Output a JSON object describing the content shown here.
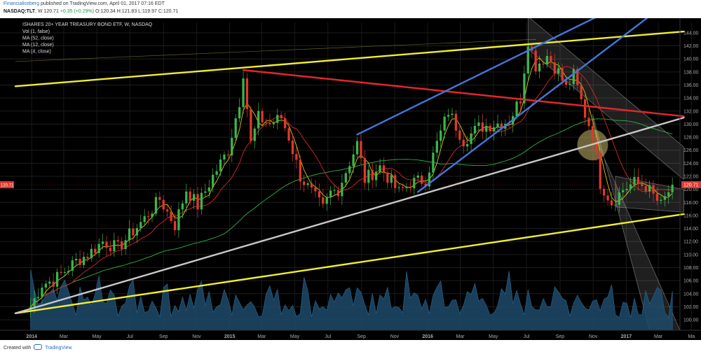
{
  "header": {
    "user": "Financialiceberg",
    "published": "published on TradingView.com, April 01, 2017 07:16 EDT",
    "symbol": "NASDAQ:TLT",
    "interval": ", W",
    "last": "120.71",
    "change": "+0.35 (+0.29%)",
    "o": "O:120.34",
    "h": "H:121.83",
    "l": "L:119.97",
    "c": "C:120.71"
  },
  "footer": {
    "created_with": "Created with",
    "brand": "TradingView"
  },
  "chart_data": {
    "type": "candlestick",
    "title": "ISHARES 20+ YEAR TREASURY BOND ETF, W, NASDAQ",
    "legend": [
      "Vol (1, false)",
      "MA (52, close)",
      "MA (12, close)",
      "MA (4, close)"
    ],
    "x_tick_labels": [
      "2014",
      "Mar",
      "May",
      "Jul",
      "Sep",
      "Nov",
      "2015",
      "Mar",
      "May",
      "Jul",
      "Sep",
      "Nov",
      "2016",
      "Mar",
      "May",
      "Jul",
      "Sep",
      "Nov",
      "2017",
      "Mar",
      "Ma"
    ],
    "y_tick_labels": [
      "100.00",
      "102.00",
      "104.00",
      "106.00",
      "108.00",
      "110.00",
      "112.00",
      "114.00",
      "116.00",
      "118.00",
      "120.00",
      "122.00",
      "124.00",
      "126.00",
      "128.00",
      "130.00",
      "132.00",
      "134.00",
      "136.00",
      "138.00",
      "140.00",
      "142.00",
      "144.00"
    ],
    "ylim": [
      98.4,
      145.6
    ],
    "x_start": "2013-12-02",
    "weeks_span": 175,
    "last_price_label": "120.71",
    "keypoints": [
      [
        "2013-12-30",
        102.0
      ],
      [
        "2014-01-20",
        105.5
      ],
      [
        "2014-02-10",
        106.0
      ],
      [
        "2014-03-03",
        107.5
      ],
      [
        "2014-03-24",
        109.0
      ],
      [
        "2014-04-14",
        110.0
      ],
      [
        "2014-05-12",
        112.0
      ],
      [
        "2014-06-09",
        111.0
      ],
      [
        "2014-06-30",
        113.0
      ],
      [
        "2014-07-28",
        115.5
      ],
      [
        "2014-08-25",
        118.5
      ],
      [
        "2014-09-22",
        114.5
      ],
      [
        "2014-10-13",
        120.0
      ],
      [
        "2014-11-03",
        117.5
      ],
      [
        "2014-12-01",
        122.0
      ],
      [
        "2014-12-29",
        126.0
      ],
      [
        "2015-01-19",
        133.5
      ],
      [
        "2015-01-26",
        138.0
      ],
      [
        "2015-02-09",
        127.0
      ],
      [
        "2015-02-23",
        131.0
      ],
      [
        "2015-03-16",
        130.0
      ],
      [
        "2015-04-06",
        131.0
      ],
      [
        "2015-04-20",
        128.0
      ],
      [
        "2015-05-11",
        122.0
      ],
      [
        "2015-06-01",
        119.5
      ],
      [
        "2015-06-22",
        117.0
      ],
      [
        "2015-07-06",
        119.5
      ],
      [
        "2015-07-20",
        120.0
      ],
      [
        "2015-08-24",
        127.0
      ],
      [
        "2015-09-07",
        121.5
      ],
      [
        "2015-10-05",
        123.5
      ],
      [
        "2015-11-09",
        119.5
      ],
      [
        "2015-11-30",
        121.0
      ],
      [
        "2015-12-28",
        121.5
      ],
      [
        "2016-01-18",
        127.0
      ],
      [
        "2016-02-08",
        132.0
      ],
      [
        "2016-03-07",
        127.5
      ],
      [
        "2016-04-04",
        129.5
      ],
      [
        "2016-05-02",
        130.0
      ],
      [
        "2016-05-30",
        130.5
      ],
      [
        "2016-06-20",
        134.0
      ],
      [
        "2016-07-04",
        143.0
      ],
      [
        "2016-07-18",
        139.0
      ],
      [
        "2016-08-08",
        140.5
      ],
      [
        "2016-08-29",
        138.0
      ],
      [
        "2016-09-12",
        135.5
      ],
      [
        "2016-09-26",
        137.5
      ],
      [
        "2016-10-17",
        131.5
      ],
      [
        "2016-10-31",
        128.5
      ],
      [
        "2016-11-14",
        121.0
      ],
      [
        "2016-12-05",
        118.0
      ],
      [
        "2016-12-26",
        120.0
      ],
      [
        "2017-01-16",
        121.0
      ],
      [
        "2017-02-06",
        120.5
      ],
      [
        "2017-03-06",
        117.5
      ],
      [
        "2017-03-27",
        120.71
      ]
    ],
    "trendlines": [
      {
        "color": "yellow",
        "points": [
          [
            "2013-12-02",
            135.8
          ],
          [
            "2017-04-17",
            144.2
          ]
        ]
      },
      {
        "color": "yellow",
        "points": [
          [
            "2013-12-02",
            101.0
          ],
          [
            "2017-04-17",
            116.2
          ]
        ]
      },
      {
        "color": "red",
        "points": [
          [
            "2015-01-26",
            138.3
          ],
          [
            "2017-04-17",
            131.2
          ]
        ]
      },
      {
        "color": "white",
        "points": [
          [
            "2013-12-02",
            101.0
          ],
          [
            "2017-04-17",
            131.0
          ]
        ]
      },
      {
        "color": "blue",
        "points": [
          [
            "2015-08-24",
            128.4
          ],
          [
            "2016-11-21",
            147.0
          ]
        ]
      },
      {
        "color": "blue",
        "points": [
          [
            "2015-12-14",
            119.6
          ],
          [
            "2017-02-20",
            147.0
          ]
        ]
      }
    ]
  }
}
